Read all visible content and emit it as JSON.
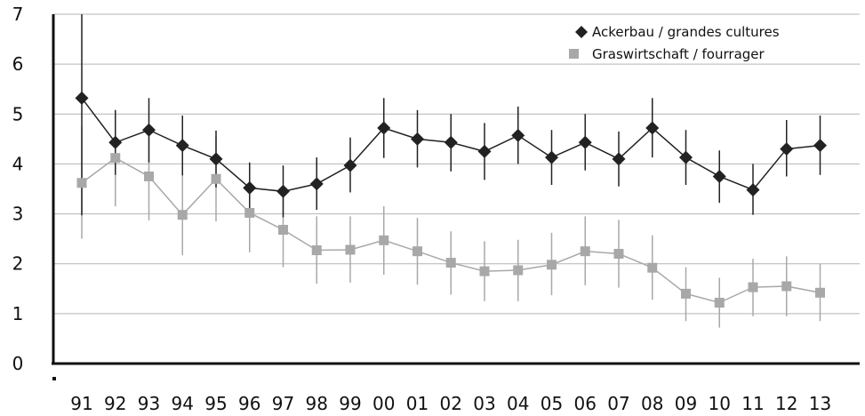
{
  "chart_data": {
    "type": "line",
    "title": "",
    "xlabel": "",
    "ylabel": "",
    "categories": [
      "91",
      "92",
      "93",
      "94",
      "95",
      "96",
      "97",
      "98",
      "99",
      "00",
      "01",
      "02",
      "03",
      "04",
      "05",
      "06",
      "07",
      "08",
      "09",
      "10",
      "11",
      "12",
      "13"
    ],
    "ylim": [
      0,
      7
    ],
    "yticks": [
      "0",
      "1",
      "2",
      "3",
      "4",
      "5",
      "6",
      "7"
    ],
    "grid": "horizontal",
    "legend_position": "top-right",
    "series": [
      {
        "name": "Ackerbau / grandes cultures",
        "marker": "diamond",
        "color": "#222222",
        "values": [
          5.32,
          4.43,
          4.68,
          4.37,
          4.1,
          3.52,
          3.45,
          3.6,
          3.97,
          4.72,
          4.5,
          4.43,
          4.25,
          4.57,
          4.13,
          4.43,
          4.1,
          4.72,
          4.13,
          3.75,
          3.48,
          4.3,
          4.37
        ],
        "error_low": [
          2.97,
          3.78,
          4.03,
          3.77,
          3.53,
          3.0,
          2.93,
          3.08,
          3.43,
          4.12,
          3.93,
          3.85,
          3.68,
          4.0,
          3.58,
          3.87,
          3.55,
          4.13,
          3.58,
          3.22,
          2.98,
          3.75,
          3.78
        ],
        "error_high": [
          7.0,
          5.08,
          5.32,
          4.97,
          4.67,
          4.03,
          3.97,
          4.13,
          4.53,
          5.32,
          5.08,
          5.0,
          4.82,
          5.15,
          4.68,
          5.0,
          4.65,
          5.32,
          4.68,
          4.27,
          4.0,
          4.88,
          4.97
        ]
      },
      {
        "name": "Graswirtschaft / fourrager",
        "marker": "square",
        "color": "#a8a8a8",
        "values": [
          3.62,
          4.12,
          3.75,
          2.98,
          3.7,
          3.02,
          2.68,
          2.27,
          2.28,
          2.47,
          2.25,
          2.02,
          1.85,
          1.87,
          1.98,
          2.25,
          2.2,
          1.92,
          1.4,
          1.22,
          1.53,
          1.55,
          1.42
        ],
        "error_low": [
          2.5,
          3.15,
          2.87,
          2.17,
          2.85,
          2.23,
          1.93,
          1.6,
          1.62,
          1.78,
          1.58,
          1.38,
          1.25,
          1.25,
          1.37,
          1.57,
          1.52,
          1.28,
          0.85,
          0.72,
          0.95,
          0.95,
          0.85
        ],
        "error_high": [
          4.75,
          5.08,
          4.63,
          3.78,
          4.55,
          3.82,
          3.45,
          2.95,
          2.95,
          3.15,
          2.92,
          2.65,
          2.45,
          2.48,
          2.62,
          2.95,
          2.88,
          2.57,
          1.93,
          1.72,
          2.1,
          2.15,
          2.0
        ]
      }
    ]
  }
}
